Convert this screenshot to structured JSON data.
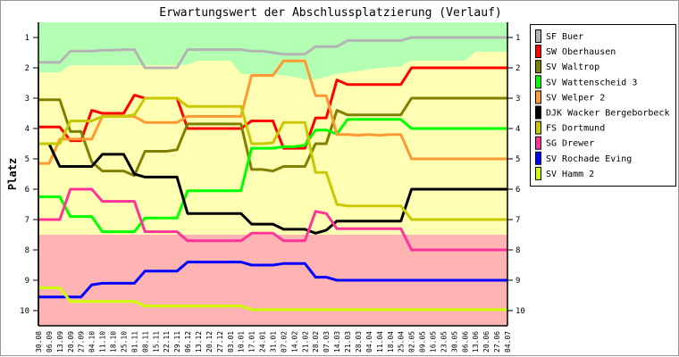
{
  "chart_data": {
    "type": "line",
    "title": "Erwartungswert der Abschlussplatzierung (Verlauf)",
    "xlabel": "",
    "ylabel": "Platz",
    "ylim": [
      1,
      10
    ],
    "y_inverted": true,
    "yticks": [
      1,
      2,
      3,
      4,
      5,
      6,
      7,
      8,
      9,
      10
    ],
    "legend_position": "right",
    "categories": [
      "30.08",
      "06.09",
      "13.09",
      "20.09",
      "27.09",
      "04.10",
      "11.10",
      "18.10",
      "25.10",
      "01.11",
      "08.11",
      "15.11",
      "22.11",
      "29.11",
      "06.12",
      "13.12",
      "20.12",
      "27.12",
      "03.01",
      "10.01",
      "17.01",
      "24.01",
      "31.01",
      "07.02",
      "14.02",
      "21.02",
      "28.02",
      "07.03",
      "14.03",
      "21.03",
      "28.03",
      "04.04",
      "11.04",
      "18.04",
      "25.04",
      "02.05",
      "09.05",
      "16.05",
      "23.05",
      "30.05",
      "06.06",
      "13.06",
      "20.06",
      "27.06",
      "04.07"
    ],
    "zones": {
      "promotion_color": "#b3ffb3",
      "middle_color": "#ffffb3",
      "relegation_color": "#ffb3b3",
      "relegation_from": 7.5,
      "promotion_boundary": [
        2.15,
        2.15,
        2.15,
        1.91,
        1.91,
        1.91,
        1.91,
        1.91,
        1.91,
        1.91,
        1.91,
        1.91,
        1.91,
        1.91,
        1.9,
        1.76,
        1.76,
        1.76,
        1.76,
        2.2,
        2.2,
        2.2,
        2.2,
        2.25,
        2.3,
        2.38,
        2.38,
        2.3,
        2.2,
        2.15,
        2.1,
        2.05,
        2.0,
        1.98,
        1.95,
        1.76,
        1.76,
        1.76,
        1.76,
        1.76,
        1.76,
        1.47,
        1.47,
        1.47,
        1.47
      ]
    },
    "series": [
      {
        "name": "SF Buer",
        "color": "#b4b4b4",
        "values": [
          1.82,
          1.82,
          1.82,
          1.45,
          1.45,
          1.45,
          1.42,
          1.42,
          1.4,
          1.4,
          2.0,
          2.0,
          2.0,
          2.0,
          1.4,
          1.4,
          1.4,
          1.4,
          1.4,
          1.4,
          1.45,
          1.45,
          1.5,
          1.55,
          1.55,
          1.55,
          1.3,
          1.3,
          1.3,
          1.1,
          1.1,
          1.1,
          1.1,
          1.1,
          1.1,
          1.0,
          1.0,
          1.0,
          1.0,
          1.0,
          1.0,
          1.0,
          1.0,
          1.0,
          1.0
        ]
      },
      {
        "name": "SW Oberhausen",
        "color": "#ff0000",
        "values": [
          3.95,
          3.95,
          3.95,
          4.4,
          4.4,
          3.4,
          3.5,
          3.5,
          3.5,
          2.9,
          3.0,
          3.0,
          3.0,
          3.0,
          4.0,
          4.0,
          4.0,
          4.0,
          4.0,
          4.0,
          3.75,
          3.75,
          3.75,
          4.65,
          4.65,
          4.65,
          3.65,
          3.65,
          2.4,
          2.55,
          2.55,
          2.55,
          2.55,
          2.55,
          2.55,
          2.0,
          2.0,
          2.0,
          2.0,
          2.0,
          2.0,
          2.0,
          2.0,
          2.0,
          2.0
        ]
      },
      {
        "name": "SV Waltrop",
        "color": "#808000",
        "values": [
          3.05,
          3.05,
          3.05,
          4.1,
          4.1,
          5.1,
          5.4,
          5.4,
          5.4,
          5.55,
          4.75,
          4.75,
          4.75,
          4.7,
          3.85,
          3.85,
          3.85,
          3.85,
          3.85,
          3.85,
          5.35,
          5.35,
          5.4,
          5.25,
          5.25,
          5.25,
          4.5,
          4.5,
          3.4,
          3.55,
          3.55,
          3.55,
          3.55,
          3.55,
          3.55,
          3.0,
          3.0,
          3.0,
          3.0,
          3.0,
          3.0,
          3.0,
          3.0,
          3.0,
          3.0
        ]
      },
      {
        "name": "SV Wattenscheid 3",
        "color": "#00ff00",
        "values": [
          6.25,
          6.25,
          6.25,
          6.9,
          6.9,
          6.9,
          7.4,
          7.4,
          7.4,
          7.4,
          6.95,
          6.95,
          6.95,
          6.95,
          6.05,
          6.05,
          6.05,
          6.05,
          6.05,
          6.05,
          4.65,
          4.65,
          4.65,
          4.6,
          4.6,
          4.55,
          4.05,
          4.05,
          4.18,
          3.7,
          3.7,
          3.7,
          3.7,
          3.7,
          3.7,
          4.0,
          4.0,
          4.0,
          4.0,
          4.0,
          4.0,
          4.0,
          4.0,
          4.0,
          4.0
        ]
      },
      {
        "name": "SV Welper 2",
        "color": "#ff9933",
        "values": [
          5.15,
          5.15,
          4.35,
          4.35,
          4.35,
          4.35,
          3.6,
          3.6,
          3.6,
          3.6,
          3.8,
          3.8,
          3.8,
          3.8,
          3.6,
          3.6,
          3.6,
          3.6,
          3.6,
          3.6,
          2.25,
          2.25,
          2.25,
          1.77,
          1.77,
          1.77,
          2.92,
          2.92,
          4.2,
          4.2,
          4.22,
          4.2,
          4.22,
          4.2,
          4.2,
          5.0,
          5.0,
          5.0,
          5.0,
          5.0,
          5.0,
          5.0,
          5.0,
          5.0,
          5.0
        ]
      },
      {
        "name": "DJK Wacker Bergeborbeck",
        "color": "#000000",
        "values": [
          null,
          4.5,
          5.25,
          5.25,
          5.25,
          5.25,
          4.85,
          4.85,
          4.85,
          5.5,
          5.6,
          5.6,
          5.6,
          5.6,
          6.8,
          6.8,
          6.8,
          6.8,
          6.8,
          6.8,
          7.15,
          7.15,
          7.15,
          7.32,
          7.32,
          7.32,
          7.45,
          7.35,
          7.05,
          7.05,
          7.05,
          7.05,
          7.05,
          7.05,
          7.05,
          6.0,
          6.0,
          6.0,
          6.0,
          6.0,
          6.0,
          6.0,
          6.0,
          6.0,
          6.0
        ]
      },
      {
        "name": "FS Dortmund",
        "color": "#c8c800",
        "values": [
          4.5,
          4.5,
          4.5,
          3.75,
          3.75,
          3.75,
          3.6,
          3.6,
          3.6,
          3.55,
          3.0,
          3.0,
          3.0,
          3.0,
          3.27,
          3.27,
          3.27,
          3.27,
          3.27,
          3.27,
          4.5,
          4.5,
          4.47,
          3.8,
          3.8,
          3.8,
          5.45,
          5.45,
          6.5,
          6.55,
          6.55,
          6.55,
          6.55,
          6.55,
          6.55,
          7.0,
          7.0,
          7.0,
          7.0,
          7.0,
          7.0,
          7.0,
          7.0,
          7.0,
          7.0
        ]
      },
      {
        "name": "SG Drewer",
        "color": "#ff3399",
        "values": [
          7.0,
          7.0,
          7.0,
          6.0,
          6.0,
          6.0,
          6.4,
          6.4,
          6.4,
          6.4,
          7.4,
          7.4,
          7.4,
          7.4,
          7.7,
          7.7,
          7.7,
          7.7,
          7.7,
          7.7,
          7.45,
          7.45,
          7.45,
          7.7,
          7.7,
          7.7,
          6.73,
          6.8,
          7.3,
          7.3,
          7.3,
          7.3,
          7.3,
          7.3,
          7.3,
          8.0,
          8.0,
          8.0,
          8.0,
          8.0,
          8.0,
          8.0,
          8.0,
          8.0,
          8.0
        ]
      },
      {
        "name": "SV Rochade Eving",
        "color": "#0000ff",
        "values": [
          9.55,
          9.55,
          9.55,
          9.55,
          9.55,
          9.15,
          9.1,
          9.1,
          9.1,
          9.1,
          8.7,
          8.7,
          8.7,
          8.7,
          8.4,
          8.4,
          8.4,
          8.4,
          8.4,
          8.4,
          8.5,
          8.5,
          8.5,
          8.45,
          8.45,
          8.45,
          8.9,
          8.9,
          9.0,
          9.0,
          9.0,
          9.0,
          9.0,
          9.0,
          9.0,
          9.0,
          9.0,
          9.0,
          9.0,
          9.0,
          9.0,
          9.0,
          9.0,
          9.0,
          9.0
        ]
      },
      {
        "name": "SV Hamm 2",
        "color": "#ccff00",
        "values": [
          9.25,
          9.25,
          9.25,
          9.7,
          9.7,
          9.7,
          9.7,
          9.7,
          9.7,
          9.7,
          9.85,
          9.85,
          9.85,
          9.85,
          9.85,
          9.85,
          9.85,
          9.85,
          9.85,
          9.85,
          9.97,
          9.97,
          9.97,
          9.97,
          9.97,
          9.97,
          9.97,
          9.97,
          9.97,
          9.97,
          9.97,
          9.97,
          9.97,
          9.97,
          9.97,
          9.97,
          9.97,
          9.97,
          9.97,
          9.97,
          9.97,
          9.97,
          9.97,
          9.97,
          9.97
        ]
      }
    ]
  }
}
